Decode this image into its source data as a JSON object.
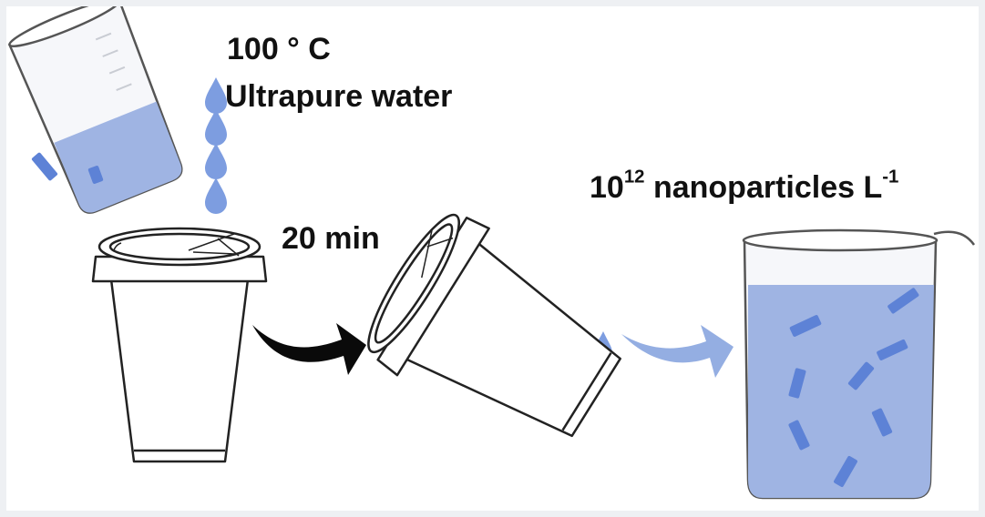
{
  "labels": {
    "temperature": "100 ° C",
    "liquid": "Ultrapure water",
    "time": "20 min",
    "result_base": "10",
    "result_exp": "12",
    "result_unit": " nanoparticles L",
    "result_unit_exp": "-1"
  },
  "colors": {
    "water": "#9fb4e3",
    "water_dark": "#6f8fd6",
    "particle": "#5d82d6",
    "arrow_black": "#0a0a0a",
    "arrow_blue": "#94aee2",
    "outline": "#333333"
  }
}
